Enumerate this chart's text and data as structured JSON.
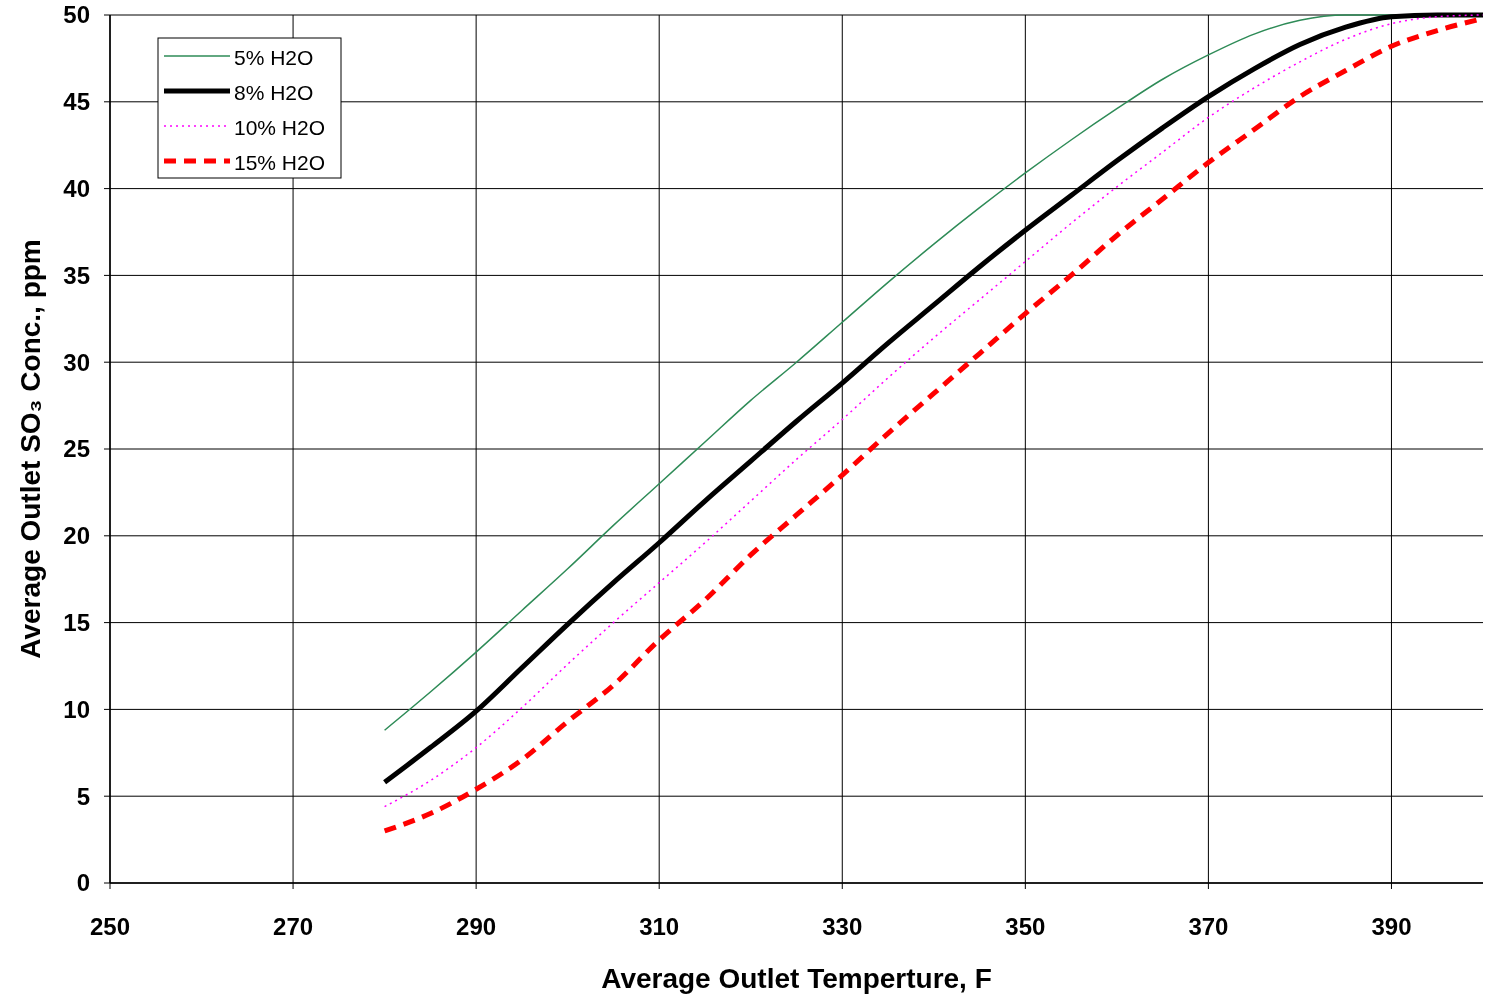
{
  "chart_data": {
    "type": "line",
    "xlabel": "Average Outlet Temperture, F",
    "ylabel": "Average Outlet SO₃ Conc., ppm",
    "xlim": [
      250,
      400
    ],
    "ylim": [
      0,
      50
    ],
    "xticks": [
      250,
      270,
      290,
      310,
      330,
      350,
      370,
      390
    ],
    "yticks": [
      0,
      5,
      10,
      15,
      20,
      25,
      30,
      35,
      40,
      45,
      50
    ],
    "grid": true,
    "legend": "top left",
    "marker": "none",
    "x": [
      280,
      285,
      290,
      295,
      300,
      305,
      310,
      315,
      320,
      325,
      330,
      335,
      340,
      345,
      350,
      355,
      360,
      365,
      370,
      375,
      380,
      385,
      390,
      395,
      400
    ],
    "series": [
      {
        "name": "5% H2O",
        "color": "#2e8b57",
        "line_style": "solid",
        "values": [
          8.8,
          11.0,
          13.3,
          15.7,
          18.1,
          20.6,
          23.0,
          25.4,
          27.8,
          30.0,
          32.3,
          34.6,
          36.8,
          38.9,
          40.9,
          42.8,
          44.6,
          46.3,
          47.7,
          48.9,
          49.7,
          50,
          50,
          50,
          50
        ]
      },
      {
        "name": "8% H2O",
        "color": "#000000",
        "line_style": "solid",
        "values": [
          5.8,
          7.8,
          9.9,
          12.4,
          14.9,
          17.3,
          19.6,
          22.0,
          24.3,
          26.6,
          28.8,
          31.1,
          33.3,
          35.5,
          37.6,
          39.6,
          41.6,
          43.5,
          45.3,
          46.9,
          48.3,
          49.3,
          49.9,
          50,
          50
        ]
      },
      {
        "name": "10% H2O",
        "color": "#ff00ff",
        "line_style": "dotted",
        "values": [
          4.4,
          5.9,
          7.8,
          10.1,
          12.6,
          15.0,
          17.3,
          19.6,
          22.0,
          24.4,
          26.7,
          29.1,
          31.4,
          33.6,
          35.8,
          38.0,
          40.1,
          42.1,
          44.1,
          45.8,
          47.3,
          48.6,
          49.5,
          49.9,
          50
        ]
      },
      {
        "name": "15% H2O",
        "color": "#ff0000",
        "line_style": "dashed",
        "values": [
          3.0,
          4.0,
          5.4,
          7.1,
          9.3,
          11.4,
          14.0,
          16.3,
          18.9,
          21.2,
          23.5,
          25.9,
          28.2,
          30.5,
          32.8,
          35.0,
          37.3,
          39.4,
          41.5,
          43.4,
          45.3,
          46.8,
          48.2,
          49.1,
          49.8
        ]
      }
    ]
  }
}
